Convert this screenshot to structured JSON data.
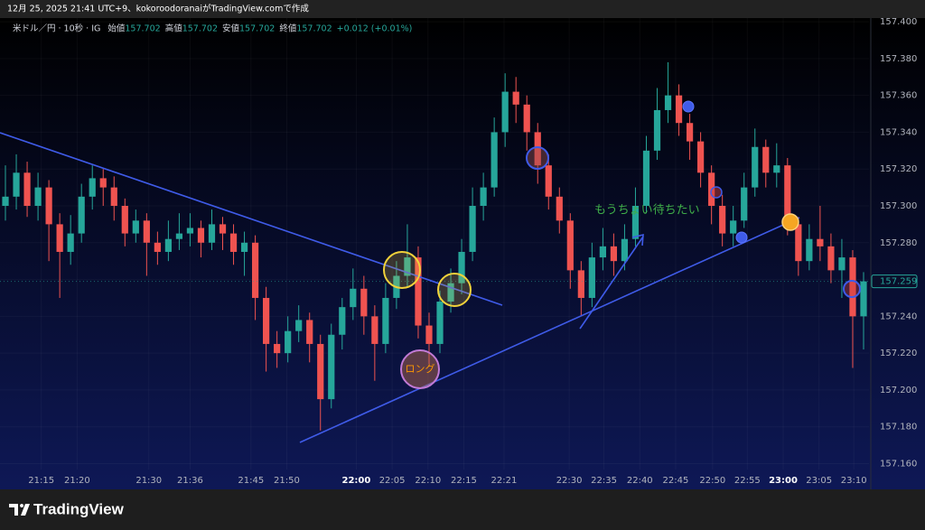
{
  "header": "12月 25, 2025 21:41 UTC+9、kokoroodoranaiがTradingView.comで作成",
  "footer": "TradingView",
  "chart_data": {
    "type": "candlestick",
    "legend": {
      "symbol": "米ドル／円 · 10秒 · IG",
      "fields": [
        {
          "label": "始値",
          "value": 157.702
        },
        {
          "label": "高値",
          "value": 157.702
        },
        {
          "label": "安値",
          "value": 157.702
        },
        {
          "label": "終値",
          "value": 157.702
        }
      ],
      "change": "+0.012 (+0.01%)"
    },
    "up_color": "#26a69a",
    "down_color": "#ef5350",
    "grid": true,
    "open": [
      157.3,
      157.305,
      157.318,
      157.3,
      157.31,
      157.29,
      157.275,
      157.285,
      157.305,
      157.315,
      157.31,
      157.3,
      157.285,
      157.292,
      157.28,
      157.275,
      157.282,
      157.285,
      157.288,
      157.28,
      157.29,
      157.285,
      157.275,
      157.28,
      157.25,
      157.225,
      157.22,
      157.232,
      157.238,
      157.225,
      157.195,
      157.23,
      157.245,
      157.255,
      157.24,
      157.225,
      157.25,
      157.262,
      157.272,
      157.235,
      157.225,
      157.248,
      157.258,
      157.275,
      157.3,
      157.31,
      157.34,
      157.362,
      157.355,
      157.34,
      157.322,
      157.305,
      157.292,
      157.265,
      157.25,
      157.272,
      157.278,
      157.27,
      157.282,
      157.3,
      157.33,
      157.352,
      157.36,
      157.345,
      157.335,
      157.318,
      157.3,
      157.285,
      157.292,
      157.31,
      157.332,
      157.318,
      157.322,
      157.29,
      157.27,
      157.282,
      157.278,
      157.265,
      157.272,
      157.24
    ],
    "high": [
      157.322,
      157.328,
      157.324,
      157.318,
      157.314,
      157.296,
      157.295,
      157.312,
      157.322,
      157.32,
      157.316,
      157.304,
      157.298,
      157.296,
      157.286,
      157.292,
      157.296,
      157.296,
      157.292,
      157.298,
      157.294,
      157.29,
      157.286,
      157.284,
      157.256,
      157.232,
      157.24,
      157.246,
      157.242,
      157.23,
      157.236,
      157.25,
      157.266,
      157.262,
      157.246,
      157.258,
      157.27,
      157.29,
      157.278,
      157.242,
      157.254,
      157.266,
      157.282,
      157.31,
      157.318,
      157.348,
      157.372,
      157.37,
      157.36,
      157.345,
      157.328,
      157.31,
      157.296,
      157.27,
      157.28,
      157.288,
      157.285,
      157.29,
      157.31,
      157.338,
      157.364,
      157.378,
      157.366,
      157.35,
      157.34,
      157.322,
      157.306,
      157.3,
      157.318,
      157.342,
      157.336,
      157.334,
      157.326,
      157.294,
      157.29,
      157.3,
      157.285,
      157.282,
      157.276,
      157.264
    ],
    "low": [
      157.292,
      157.298,
      157.294,
      157.292,
      157.27,
      157.25,
      157.268,
      157.28,
      157.298,
      157.3,
      157.292,
      157.278,
      157.28,
      157.262,
      157.268,
      157.27,
      157.276,
      157.278,
      157.272,
      157.276,
      157.276,
      157.268,
      157.262,
      157.238,
      157.21,
      157.212,
      157.215,
      157.226,
      157.215,
      157.178,
      157.19,
      157.222,
      157.238,
      157.23,
      157.205,
      157.22,
      157.244,
      157.256,
      157.228,
      157.214,
      157.22,
      157.242,
      157.252,
      157.27,
      157.292,
      157.305,
      157.332,
      157.345,
      157.33,
      157.312,
      157.298,
      157.285,
      157.255,
      157.24,
      157.245,
      157.265,
      157.262,
      157.265,
      157.278,
      157.296,
      157.325,
      157.345,
      157.338,
      157.325,
      157.31,
      157.29,
      157.278,
      157.278,
      157.288,
      157.305,
      157.31,
      157.31,
      157.284,
      157.262,
      157.265,
      157.27,
      157.258,
      157.25,
      157.212,
      157.222
    ],
    "close": [
      157.305,
      157.318,
      157.3,
      157.31,
      157.29,
      157.275,
      157.285,
      157.305,
      157.315,
      157.31,
      157.3,
      157.285,
      157.292,
      157.28,
      157.275,
      157.282,
      157.285,
      157.288,
      157.28,
      157.29,
      157.285,
      157.275,
      157.28,
      157.25,
      157.225,
      157.22,
      157.232,
      157.238,
      157.225,
      157.195,
      157.23,
      157.245,
      157.255,
      157.24,
      157.225,
      157.25,
      157.262,
      157.272,
      157.235,
      157.225,
      157.248,
      157.258,
      157.275,
      157.3,
      157.31,
      157.34,
      157.362,
      157.355,
      157.34,
      157.322,
      157.305,
      157.292,
      157.265,
      157.25,
      157.272,
      157.278,
      157.27,
      157.282,
      157.3,
      157.33,
      157.352,
      157.36,
      157.345,
      157.335,
      157.318,
      157.3,
      157.285,
      157.292,
      157.31,
      157.332,
      157.318,
      157.322,
      157.29,
      157.27,
      157.282,
      157.278,
      157.265,
      157.272,
      157.24,
      157.259
    ],
    "xlim": [
      0,
      80
    ],
    "xticks": [
      {
        "value": 3.8,
        "label": "21:15"
      },
      {
        "value": 7.1,
        "label": "21:20"
      },
      {
        "value": 13.7,
        "label": "21:30"
      },
      {
        "value": 17.5,
        "label": "21:36"
      },
      {
        "value": 23.1,
        "label": "21:45"
      },
      {
        "value": 26.4,
        "label": "21:50"
      },
      {
        "value": 32.8,
        "label": "22:00",
        "bold": true
      },
      {
        "value": 36.1,
        "label": "22:05"
      },
      {
        "value": 39.4,
        "label": "22:10"
      },
      {
        "value": 42.7,
        "label": "22:15"
      },
      {
        "value": 46.4,
        "label": "22:21"
      },
      {
        "value": 52.4,
        "label": "22:30"
      },
      {
        "value": 55.6,
        "label": "22:35"
      },
      {
        "value": 58.9,
        "label": "22:40"
      },
      {
        "value": 62.2,
        "label": "22:45"
      },
      {
        "value": 65.6,
        "label": "22:50"
      },
      {
        "value": 68.8,
        "label": "22:55"
      },
      {
        "value": 72.1,
        "label": "23:00",
        "bold": true
      },
      {
        "value": 75.4,
        "label": "23:05"
      },
      {
        "value": 78.6,
        "label": "23:10"
      }
    ],
    "ylim": [
      157.147,
      157.402
    ],
    "yticks": [
      {
        "value": 157.4,
        "label": "157.400"
      },
      {
        "value": 157.38,
        "label": "157.380"
      },
      {
        "value": 157.36,
        "label": "157.360"
      },
      {
        "value": 157.34,
        "label": "157.340"
      },
      {
        "value": 157.32,
        "label": "157.320"
      },
      {
        "value": 157.3,
        "label": "157.300"
      },
      {
        "value": 157.28,
        "label": "157.280"
      },
      {
        "value": 157.26,
        "label": "157.260"
      },
      {
        "value": 157.24,
        "label": "157.240"
      },
      {
        "value": 157.22,
        "label": "157.220"
      },
      {
        "value": 157.2,
        "label": "157.200"
      },
      {
        "value": 157.18,
        "label": "157.180"
      },
      {
        "value": 157.16,
        "label": "157.160"
      }
    ],
    "annotations": [
      "ロング",
      "もうちょい待ちたい"
    ]
  }
}
